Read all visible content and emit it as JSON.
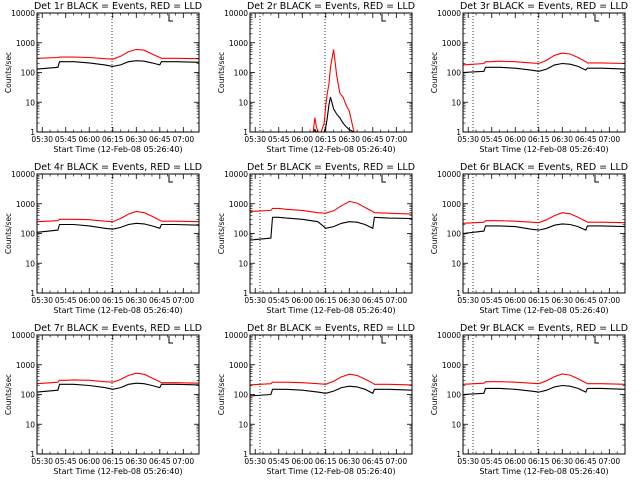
{
  "figure": {
    "xlabel": "Start Time (12-Feb-08 05:26:40)",
    "ylabel": "Counts/sec",
    "xticks": [
      "05:30",
      "05:45",
      "06:00",
      "06:15",
      "06:30",
      "06:45",
      "07:00"
    ],
    "yticks": [
      "1",
      "10",
      "100",
      "1000",
      "10000"
    ],
    "colors": {
      "events": "#000000",
      "lld": "#ff0000",
      "axes": "#000000"
    }
  },
  "chart_data": [
    {
      "type": "line",
      "title": "Det 1r BLACK = Events, RED = LLD",
      "xlim": [
        "05:26:40",
        "07:10"
      ],
      "ylim": [
        1,
        10000
      ],
      "yscale": "log",
      "x": [
        "05:26:40",
        "05:40",
        "05:41",
        "05:45",
        "05:50",
        "06:00",
        "06:10",
        "06:15",
        "06:20",
        "06:25",
        "06:30",
        "06:35",
        "06:40",
        "06:45",
        "06:46",
        "06:55",
        "07:10"
      ],
      "series": [
        {
          "name": "Events",
          "color": "#000000",
          "values": [
            130,
            150,
            230,
            230,
            230,
            210,
            180,
            160,
            180,
            230,
            250,
            240,
            210,
            180,
            230,
            230,
            220
          ]
        },
        {
          "name": "LLD",
          "color": "#ff0000",
          "values": [
            300,
            320,
            330,
            330,
            330,
            320,
            290,
            280,
            350,
            500,
            600,
            560,
            420,
            320,
            300,
            300,
            290
          ]
        }
      ]
    },
    {
      "type": "line",
      "title": "Det 2r BLACK = Events, RED = LLD",
      "xlim": [
        "05:26:40",
        "07:10"
      ],
      "ylim": [
        1,
        10000
      ],
      "yscale": "log",
      "x": [
        "06:07",
        "06:08",
        "06:09",
        "06:10",
        "06:12",
        "06:14",
        "06:15",
        "06:16",
        "06:17",
        "06:18",
        "06:20",
        "06:22",
        "06:24",
        "06:26",
        "06:28",
        "06:30",
        "06:33"
      ],
      "series": [
        {
          "name": "Events",
          "color": "#000000",
          "values": [
            1,
            1.2,
            1,
            1,
            1,
            1,
            1.5,
            3,
            8,
            15,
            6,
            4,
            3,
            2,
            1.5,
            1.2,
            1
          ]
        },
        {
          "name": "LLD",
          "color": "#ff0000",
          "values": [
            1,
            3,
            1.5,
            1,
            1,
            2,
            8,
            20,
            40,
            150,
            600,
            80,
            20,
            15,
            8,
            5,
            1
          ]
        }
      ]
    },
    {
      "type": "line",
      "title": "Det 3r BLACK = Events, RED = LLD",
      "xlim": [
        "05:26:40",
        "07:10"
      ],
      "ylim": [
        1,
        10000
      ],
      "yscale": "log",
      "x": [
        "05:26:40",
        "05:40",
        "05:41",
        "05:45",
        "05:50",
        "06:00",
        "06:10",
        "06:15",
        "06:20",
        "06:25",
        "06:30",
        "06:35",
        "06:40",
        "06:45",
        "06:46",
        "06:55",
        "07:10"
      ],
      "series": [
        {
          "name": "Events",
          "color": "#000000",
          "values": [
            100,
            110,
            150,
            150,
            150,
            140,
            120,
            110,
            130,
            180,
            200,
            190,
            160,
            120,
            140,
            140,
            130
          ]
        },
        {
          "name": "LLD",
          "color": "#ff0000",
          "values": [
            180,
            200,
            230,
            230,
            240,
            230,
            210,
            200,
            260,
            380,
            450,
            420,
            320,
            230,
            210,
            210,
            200
          ]
        }
      ]
    },
    {
      "type": "line",
      "title": "Det 4r BLACK = Events, RED = LLD",
      "xlim": [
        "05:26:40",
        "07:10"
      ],
      "ylim": [
        1,
        10000
      ],
      "yscale": "log",
      "x": [
        "05:26:40",
        "05:40",
        "05:41",
        "05:45",
        "05:50",
        "06:00",
        "06:10",
        "06:15",
        "06:20",
        "06:25",
        "06:30",
        "06:35",
        "06:40",
        "06:45",
        "06:46",
        "06:55",
        "07:10"
      ],
      "series": [
        {
          "name": "Events",
          "color": "#000000",
          "values": [
            110,
            130,
            200,
            200,
            200,
            180,
            150,
            140,
            160,
            200,
            220,
            210,
            180,
            150,
            200,
            200,
            190
          ]
        },
        {
          "name": "LLD",
          "color": "#ff0000",
          "values": [
            250,
            270,
            300,
            300,
            300,
            290,
            260,
            250,
            320,
            450,
            550,
            500,
            380,
            280,
            260,
            260,
            250
          ]
        }
      ]
    },
    {
      "type": "line",
      "title": "Det 5r BLACK = Events, RED = LLD",
      "xlim": [
        "05:26:40",
        "07:10"
      ],
      "ylim": [
        1,
        10000
      ],
      "yscale": "log",
      "x": [
        "05:26:40",
        "05:40",
        "05:41",
        "05:45",
        "05:50",
        "06:00",
        "06:10",
        "06:15",
        "06:20",
        "06:25",
        "06:30",
        "06:35",
        "06:40",
        "06:45",
        "06:46",
        "06:55",
        "07:10"
      ],
      "series": [
        {
          "name": "Events",
          "color": "#000000",
          "values": [
            60,
            70,
            350,
            350,
            330,
            300,
            250,
            150,
            170,
            220,
            250,
            240,
            200,
            150,
            350,
            330,
            320
          ]
        },
        {
          "name": "LLD",
          "color": "#ff0000",
          "values": [
            550,
            600,
            700,
            700,
            650,
            600,
            500,
            480,
            580,
            850,
            1200,
            1050,
            750,
            550,
            500,
            480,
            450
          ]
        }
      ]
    },
    {
      "type": "line",
      "title": "Det 6r BLACK = Events, RED = LLD",
      "xlim": [
        "05:26:40",
        "07:10"
      ],
      "ylim": [
        1,
        10000
      ],
      "yscale": "log",
      "x": [
        "05:26:40",
        "05:40",
        "05:41",
        "05:45",
        "05:50",
        "06:00",
        "06:10",
        "06:15",
        "06:20",
        "06:25",
        "06:30",
        "06:35",
        "06:40",
        "06:45",
        "06:46",
        "06:55",
        "07:10"
      ],
      "series": [
        {
          "name": "Events",
          "color": "#000000",
          "values": [
            100,
            120,
            180,
            180,
            180,
            170,
            140,
            130,
            150,
            190,
            210,
            200,
            170,
            130,
            180,
            180,
            170
          ]
        },
        {
          "name": "LLD",
          "color": "#ff0000",
          "values": [
            220,
            240,
            270,
            270,
            270,
            260,
            240,
            230,
            290,
            400,
            500,
            460,
            350,
            260,
            240,
            240,
            230
          ]
        }
      ]
    },
    {
      "type": "line",
      "title": "Det 7r BLACK = Events, RED = LLD",
      "xlim": [
        "05:26:40",
        "07:10"
      ],
      "ylim": [
        1,
        10000
      ],
      "yscale": "log",
      "x": [
        "05:26:40",
        "05:40",
        "05:41",
        "05:45",
        "05:50",
        "06:00",
        "06:10",
        "06:15",
        "06:20",
        "06:25",
        "06:30",
        "06:35",
        "06:40",
        "06:45",
        "06:46",
        "06:55",
        "07:10"
      ],
      "series": [
        {
          "name": "Events",
          "color": "#000000",
          "values": [
            120,
            140,
            220,
            220,
            220,
            200,
            170,
            150,
            170,
            220,
            240,
            230,
            200,
            170,
            220,
            220,
            210
          ]
        },
        {
          "name": "LLD",
          "color": "#ff0000",
          "values": [
            230,
            260,
            300,
            300,
            310,
            300,
            270,
            260,
            320,
            440,
            520,
            480,
            360,
            270,
            250,
            250,
            240
          ]
        }
      ]
    },
    {
      "type": "line",
      "title": "Det 8r BLACK = Events, RED = LLD",
      "xlim": [
        "05:26:40",
        "07:10"
      ],
      "ylim": [
        1,
        10000
      ],
      "yscale": "log",
      "x": [
        "05:26:40",
        "05:40",
        "05:41",
        "05:45",
        "05:50",
        "06:00",
        "06:10",
        "06:15",
        "06:20",
        "06:25",
        "06:30",
        "06:35",
        "06:40",
        "06:45",
        "06:46",
        "06:55",
        "07:10"
      ],
      "series": [
        {
          "name": "Events",
          "color": "#000000",
          "values": [
            90,
            100,
            150,
            150,
            150,
            140,
            120,
            110,
            130,
            170,
            190,
            180,
            150,
            110,
            150,
            150,
            140
          ]
        },
        {
          "name": "LLD",
          "color": "#ff0000",
          "values": [
            210,
            230,
            260,
            260,
            260,
            250,
            230,
            220,
            280,
            390,
            480,
            440,
            330,
            240,
            220,
            220,
            210
          ]
        }
      ]
    },
    {
      "type": "line",
      "title": "Det 9r BLACK = Events, RED = LLD",
      "xlim": [
        "05:26:40",
        "07:10"
      ],
      "ylim": [
        1,
        10000
      ],
      "yscale": "log",
      "x": [
        "05:26:40",
        "05:40",
        "05:41",
        "05:45",
        "05:50",
        "06:00",
        "06:10",
        "06:15",
        "06:20",
        "06:25",
        "06:30",
        "06:35",
        "06:40",
        "06:45",
        "06:46",
        "06:55",
        "07:10"
      ],
      "series": [
        {
          "name": "Events",
          "color": "#000000",
          "values": [
            100,
            110,
            160,
            160,
            160,
            150,
            130,
            120,
            140,
            180,
            200,
            190,
            160,
            120,
            160,
            160,
            150
          ]
        },
        {
          "name": "LLD",
          "color": "#ff0000",
          "values": [
            220,
            240,
            270,
            270,
            270,
            260,
            240,
            230,
            290,
            400,
            490,
            450,
            340,
            250,
            230,
            230,
            220
          ]
        }
      ]
    }
  ]
}
